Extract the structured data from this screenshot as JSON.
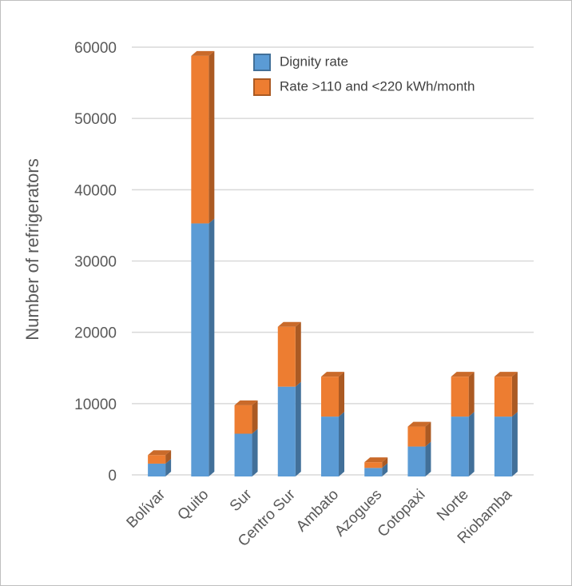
{
  "chart_data": {
    "type": "stacked_bar_3d",
    "y_label": "Number of refrigerators",
    "categories": [
      "Bolívar",
      "Quito",
      "Sur",
      "Centro Sur",
      "Ambato",
      "Azogues",
      "Cotopaxi",
      "Norte",
      "Riobamba"
    ],
    "series": [
      {
        "name": "Dignity rate",
        "color": "#5b9bd5",
        "values": [
          1800,
          35500,
          6000,
          12600,
          8400,
          1200,
          4200,
          8400,
          8400
        ]
      },
      {
        "name": "Rate >110 and <220 kWh/month",
        "color": "#ed7d31",
        "values": [
          1200,
          23500,
          4000,
          8400,
          5600,
          800,
          2800,
          5600,
          5600
        ]
      }
    ],
    "ylim": [
      0,
      60000
    ],
    "yticks": [
      0,
      10000,
      20000,
      30000,
      40000,
      50000,
      60000
    ],
    "grid": true
  }
}
